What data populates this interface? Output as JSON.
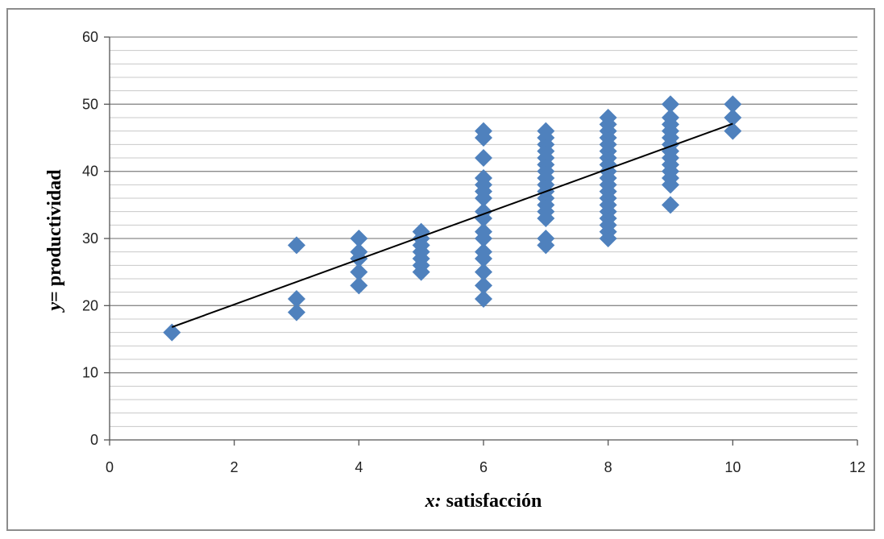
{
  "chart_data": {
    "type": "scatter",
    "xlabel_var": "x:",
    "xlabel_text": " satisfacción",
    "ylabel_var": "y",
    "ylabel_text": "= productividad",
    "xlim": [
      0,
      12
    ],
    "ylim": [
      0,
      60
    ],
    "x_ticks": [
      0,
      2,
      4,
      6,
      8,
      10,
      12
    ],
    "y_ticks": [
      0,
      10,
      20,
      30,
      40,
      50,
      60
    ],
    "y_minor_step": 2,
    "grid": true,
    "legend": "none",
    "marker_color": "#4f81bd",
    "line_color": "#000000",
    "points": [
      [
        1,
        16
      ],
      [
        3,
        19
      ],
      [
        3,
        21
      ],
      [
        3,
        29
      ],
      [
        4,
        23
      ],
      [
        4,
        25
      ],
      [
        4,
        27
      ],
      [
        4,
        28
      ],
      [
        4,
        30
      ],
      [
        5,
        25
      ],
      [
        5,
        26
      ],
      [
        5,
        27
      ],
      [
        5,
        28
      ],
      [
        5,
        29
      ],
      [
        5,
        30
      ],
      [
        5,
        31
      ],
      [
        6,
        21
      ],
      [
        6,
        23
      ],
      [
        6,
        25
      ],
      [
        6,
        27
      ],
      [
        6,
        28
      ],
      [
        6,
        30
      ],
      [
        6,
        31
      ],
      [
        6,
        33
      ],
      [
        6,
        34
      ],
      [
        6,
        36
      ],
      [
        6,
        37
      ],
      [
        6,
        38
      ],
      [
        6,
        39
      ],
      [
        6,
        42
      ],
      [
        6,
        45
      ],
      [
        6,
        46
      ],
      [
        7,
        29
      ],
      [
        7,
        30
      ],
      [
        7,
        33
      ],
      [
        7,
        34
      ],
      [
        7,
        35
      ],
      [
        7,
        36
      ],
      [
        7,
        37
      ],
      [
        7,
        38
      ],
      [
        7,
        39
      ],
      [
        7,
        40
      ],
      [
        7,
        41
      ],
      [
        7,
        42
      ],
      [
        7,
        43
      ],
      [
        7,
        44
      ],
      [
        7,
        45
      ],
      [
        7,
        46
      ],
      [
        8,
        30
      ],
      [
        8,
        31
      ],
      [
        8,
        32
      ],
      [
        8,
        33
      ],
      [
        8,
        34
      ],
      [
        8,
        35
      ],
      [
        8,
        36
      ],
      [
        8,
        37
      ],
      [
        8,
        38
      ],
      [
        8,
        39
      ],
      [
        8,
        40
      ],
      [
        8,
        41
      ],
      [
        8,
        42
      ],
      [
        8,
        43
      ],
      [
        8,
        44
      ],
      [
        8,
        45
      ],
      [
        8,
        46
      ],
      [
        8,
        47
      ],
      [
        8,
        48
      ],
      [
        9,
        35
      ],
      [
        9,
        38
      ],
      [
        9,
        39
      ],
      [
        9,
        40
      ],
      [
        9,
        41
      ],
      [
        9,
        42
      ],
      [
        9,
        43
      ],
      [
        9,
        44
      ],
      [
        9,
        45
      ],
      [
        9,
        46
      ],
      [
        9,
        47
      ],
      [
        9,
        48
      ],
      [
        9,
        50
      ],
      [
        10,
        46
      ],
      [
        10,
        48
      ],
      [
        10,
        50
      ]
    ],
    "trendline": {
      "x": [
        1,
        10
      ],
      "y": [
        16.8,
        47.1
      ]
    }
  }
}
